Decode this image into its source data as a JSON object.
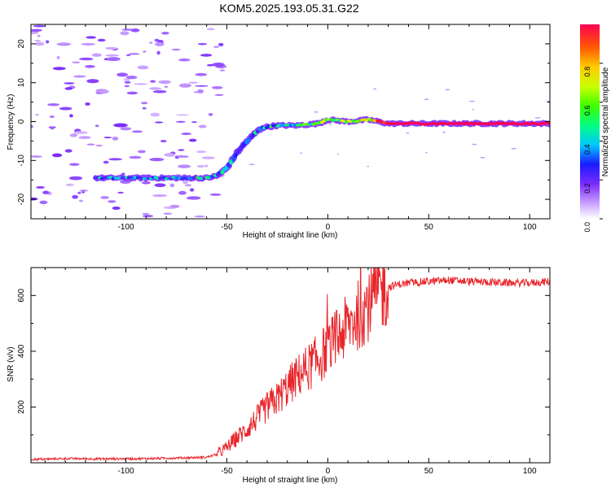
{
  "figure_title": "KOM5.2025.193.05.31.G22",
  "chart_data": [
    {
      "type": "heatmap",
      "title": "KOM5.2025.193.05.31.G22",
      "xlabel": "Height of straight line (km)",
      "ylabel": "Frequency (Hz)",
      "xlim": [
        -147,
        110
      ],
      "ylim": [
        -25,
        25
      ],
      "xticks": [
        -100,
        -50,
        0,
        50,
        100
      ],
      "yticks": [
        -20,
        -10,
        0,
        10,
        20
      ],
      "x_tick_labels": [
        "-100",
        "-50",
        "0",
        "50",
        "100"
      ],
      "y_tick_labels": [
        "-20",
        "-10",
        "0",
        "10",
        "20"
      ],
      "colorbar": {
        "label": "Normalized spectral amplitude",
        "range": [
          0,
          1
        ],
        "ticks": [
          0.0,
          0.2,
          0.4,
          0.6,
          0.8
        ],
        "tick_labels": [
          "0.0",
          "0.2",
          "0.4",
          "0.6",
          "0.8"
        ]
      },
      "ridge": {
        "description_points_x": [
          -115,
          -80,
          -60,
          -55,
          -50,
          -45,
          -40,
          -35,
          -32,
          -25,
          -15,
          -5,
          0,
          10,
          20,
          30,
          50,
          70,
          90,
          110
        ],
        "frequency_hz": [
          -14.5,
          -14.5,
          -14.5,
          -14,
          -12,
          -8,
          -5,
          -2.5,
          -1.5,
          -1,
          -1,
          -0.5,
          0.5,
          0,
          0.5,
          -0.5,
          -0.5,
          -0.5,
          -0.5,
          -0.5
        ],
        "amplitude": [
          0.3,
          0.35,
          0.35,
          0.35,
          0.3,
          0.3,
          0.3,
          0.35,
          0.35,
          0.45,
          0.5,
          0.55,
          0.6,
          0.6,
          0.7,
          1.0,
          1.0,
          1.0,
          1.0,
          1.0
        ]
      }
    },
    {
      "type": "line",
      "title": "",
      "xlabel": "Height of straight line (km)",
      "ylabel": "SNR (v/v)",
      "xlim": [
        -147,
        110
      ],
      "ylim": [
        0,
        700
      ],
      "xticks": [
        -100,
        -50,
        0,
        50,
        100
      ],
      "yticks": [
        200,
        400,
        600
      ],
      "x_tick_labels": [
        "-100",
        "-50",
        "0",
        "50",
        "100"
      ],
      "y_tick_labels": [
        "200",
        "400",
        "600"
      ],
      "color": "#e8262b",
      "series": [
        {
          "x": [
            -147,
            -130,
            -110,
            -90,
            -70,
            -60,
            -55,
            -50,
            -45,
            -40,
            -35,
            -30,
            -25,
            -20,
            -15,
            -10,
            -5,
            0,
            5,
            10,
            15,
            20,
            25,
            30,
            35,
            40,
            50,
            60,
            70,
            80,
            90,
            100,
            110
          ],
          "values": [
            12,
            15,
            14,
            15,
            18,
            20,
            30,
            55,
            90,
            120,
            160,
            200,
            230,
            270,
            310,
            340,
            370,
            410,
            450,
            490,
            530,
            570,
            610,
            630,
            640,
            645,
            650,
            655,
            650,
            648,
            645,
            645,
            650
          ]
        }
      ]
    }
  ]
}
